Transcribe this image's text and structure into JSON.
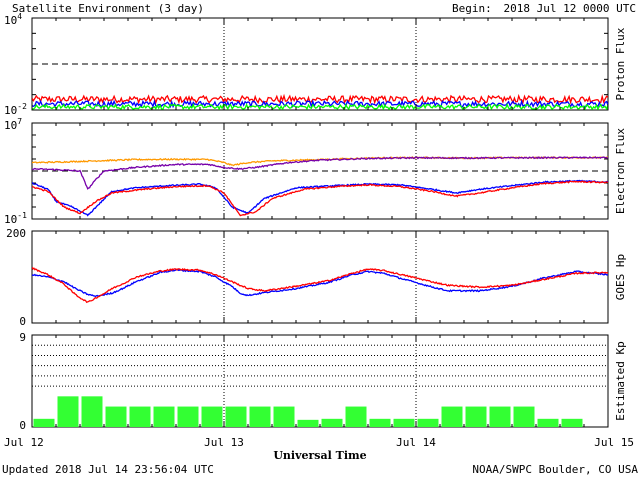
{
  "header": {
    "title": "Satellite Environment (3 day)",
    "begin_label": "Begin:",
    "begin_value": "2018 Jul 12 0000 UTC"
  },
  "footer": {
    "updated": "Updated 2018 Jul 14 23:56:04 UTC",
    "credit": "NOAA/SWPC Boulder, CO USA"
  },
  "colors": {
    "red": "#ff0000",
    "blue": "#0000ff",
    "green": "#00ff00",
    "orange": "#ff9900",
    "purple": "#7700aa",
    "kp_bar": "#33ff33"
  },
  "chart_data": [
    {
      "type": "line",
      "name": "proton-flux",
      "ylabel": "Proton Flux",
      "yscale": "log",
      "ylim": [
        0.01,
        10000
      ],
      "yticks": [
        {
          "base": "10",
          "exp": "4",
          "value": 10000
        },
        {
          "base": "10",
          "exp": "-2",
          "value": 0.01
        }
      ],
      "threshold": 10,
      "xlim": [
        0,
        72
      ],
      "series": [
        {
          "color": "red",
          "level": 0.05,
          "noise": 0.22
        },
        {
          "color": "blue",
          "level": 0.025,
          "noise": 0.18
        },
        {
          "color": "green",
          "level": 0.016,
          "noise": 0.15
        }
      ]
    },
    {
      "type": "line",
      "name": "electron-flux",
      "ylabel": "Electron Flux",
      "yscale": "log",
      "ylim": [
        0.1,
        10000000
      ],
      "yticks": [
        {
          "base": "10",
          "exp": "7",
          "value": 10000000
        },
        {
          "base": "10",
          "exp": "-1",
          "value": 0.1
        }
      ],
      "threshold": 1000,
      "xlim": [
        0,
        72
      ],
      "series": [
        {
          "color": "orange",
          "points": [
            [
              0,
              5000
            ],
            [
              3,
              5500
            ],
            [
              8,
              7000
            ],
            [
              13,
              9000
            ],
            [
              18,
              9500
            ],
            [
              22,
              9200
            ],
            [
              24,
              5000
            ],
            [
              25,
              3000
            ],
            [
              27,
              5000
            ],
            [
              30,
              7000
            ],
            [
              36,
              9000
            ],
            [
              42,
              12000
            ],
            [
              48,
              13000
            ],
            [
              54,
              12000
            ],
            [
              60,
              13000
            ],
            [
              66,
              13000
            ],
            [
              72,
              13000
            ]
          ]
        },
        {
          "color": "purple",
          "points": [
            [
              0,
              1500
            ],
            [
              3,
              1300
            ],
            [
              6,
              1000
            ],
            [
              7,
              30
            ],
            [
              8,
              200
            ],
            [
              9,
              1000
            ],
            [
              13,
              2000
            ],
            [
              18,
              3500
            ],
            [
              22,
              3600
            ],
            [
              24,
              2000
            ],
            [
              26,
              1500
            ],
            [
              28,
              2000
            ],
            [
              32,
              5000
            ],
            [
              36,
              8000
            ],
            [
              42,
              11000
            ],
            [
              48,
              12500
            ],
            [
              54,
              12000
            ],
            [
              60,
              12500
            ],
            [
              66,
              13000
            ],
            [
              72,
              13000
            ]
          ]
        },
        {
          "color": "blue",
          "points": [
            [
              0,
              100
            ],
            [
              2,
              30
            ],
            [
              3,
              3
            ],
            [
              5,
              1
            ],
            [
              7,
              0.2
            ],
            [
              8,
              1
            ],
            [
              10,
              20
            ],
            [
              13,
              40
            ],
            [
              17,
              60
            ],
            [
              21,
              80
            ],
            [
              23,
              40
            ],
            [
              25,
              1
            ],
            [
              27,
              0.3
            ],
            [
              29,
              5
            ],
            [
              33,
              40
            ],
            [
              38,
              60
            ],
            [
              42,
              80
            ],
            [
              46,
              70
            ],
            [
              50,
              30
            ],
            [
              53,
              15
            ],
            [
              56,
              30
            ],
            [
              60,
              60
            ],
            [
              64,
              120
            ],
            [
              68,
              150
            ],
            [
              72,
              120
            ]
          ]
        },
        {
          "color": "red",
          "points": [
            [
              0,
              50
            ],
            [
              2,
              20
            ],
            [
              4,
              1
            ],
            [
              6,
              0.3
            ],
            [
              8,
              3
            ],
            [
              10,
              15
            ],
            [
              14,
              30
            ],
            [
              18,
              50
            ],
            [
              22,
              60
            ],
            [
              24,
              15
            ],
            [
              26,
              0.2
            ],
            [
              28,
              0.4
            ],
            [
              30,
              5
            ],
            [
              34,
              30
            ],
            [
              38,
              50
            ],
            [
              42,
              70
            ],
            [
              46,
              50
            ],
            [
              50,
              20
            ],
            [
              53,
              8
            ],
            [
              56,
              15
            ],
            [
              60,
              40
            ],
            [
              64,
              90
            ],
            [
              68,
              130
            ],
            [
              72,
              110
            ]
          ]
        }
      ]
    },
    {
      "type": "line",
      "name": "goes-hp",
      "ylabel": "GOES Hp",
      "yscale": "linear",
      "ylim": [
        0,
        200
      ],
      "yticks": [
        {
          "label": "200",
          "value": 200
        },
        {
          "label": "0",
          "value": 0
        }
      ],
      "xlim": [
        0,
        72
      ],
      "series": [
        {
          "color": "blue",
          "points": [
            [
              0,
              105
            ],
            [
              2,
              100
            ],
            [
              4,
              90
            ],
            [
              6,
              70
            ],
            [
              7,
              62
            ],
            [
              8,
              58
            ],
            [
              10,
              65
            ],
            [
              13,
              90
            ],
            [
              16,
              110
            ],
            [
              18,
              115
            ],
            [
              21,
              112
            ],
            [
              23,
              100
            ],
            [
              25,
              80
            ],
            [
              26,
              65
            ],
            [
              27,
              60
            ],
            [
              29,
              66
            ],
            [
              33,
              75
            ],
            [
              37,
              88
            ],
            [
              40,
              105
            ],
            [
              42,
              112
            ],
            [
              44,
              108
            ],
            [
              48,
              88
            ],
            [
              52,
              70
            ],
            [
              56,
              70
            ],
            [
              60,
              80
            ],
            [
              64,
              98
            ],
            [
              68,
              112
            ],
            [
              72,
              105
            ]
          ]
        },
        {
          "color": "red",
          "points": [
            [
              0,
              120
            ],
            [
              2,
              105
            ],
            [
              4,
              85
            ],
            [
              6,
              55
            ],
            [
              7,
              45
            ],
            [
              8,
              55
            ],
            [
              10,
              75
            ],
            [
              13,
              100
            ],
            [
              16,
              113
            ],
            [
              18,
              117
            ],
            [
              21,
              115
            ],
            [
              23,
              105
            ],
            [
              25,
              90
            ],
            [
              27,
              75
            ],
            [
              29,
              70
            ],
            [
              33,
              80
            ],
            [
              37,
              92
            ],
            [
              40,
              108
            ],
            [
              42,
              117
            ],
            [
              44,
              114
            ],
            [
              48,
              98
            ],
            [
              52,
              82
            ],
            [
              56,
              78
            ],
            [
              60,
              82
            ],
            [
              64,
              95
            ],
            [
              68,
              108
            ],
            [
              72,
              110
            ]
          ]
        }
      ]
    },
    {
      "type": "bar",
      "name": "estimated-kp",
      "ylabel": "Estimated Kp",
      "ylim": [
        0,
        9
      ],
      "yticks": [
        {
          "label": "9",
          "value": 9
        },
        {
          "label": "0",
          "value": 0
        }
      ],
      "gridlines": [
        4,
        5,
        6,
        7,
        8,
        9
      ],
      "bar_width_hours": 3,
      "values": [
        0.8,
        3.0,
        3.0,
        2.0,
        2.0,
        2.0,
        2.0,
        2.0,
        2.0,
        2.0,
        2.0,
        0.7,
        0.8,
        2.0,
        0.8,
        0.8,
        0.8,
        2.0,
        2.0,
        2.0,
        2.0,
        0.8,
        0.8,
        0
      ]
    }
  ],
  "x_axis": {
    "title": "Universal Time",
    "xlim": [
      0,
      72
    ],
    "ticks": [
      {
        "label": "Jul 12",
        "hour": 0
      },
      {
        "label": "Jul 13",
        "hour": 24
      },
      {
        "label": "Jul 14",
        "hour": 48
      },
      {
        "label": "Jul 15",
        "hour": 72
      }
    ]
  }
}
